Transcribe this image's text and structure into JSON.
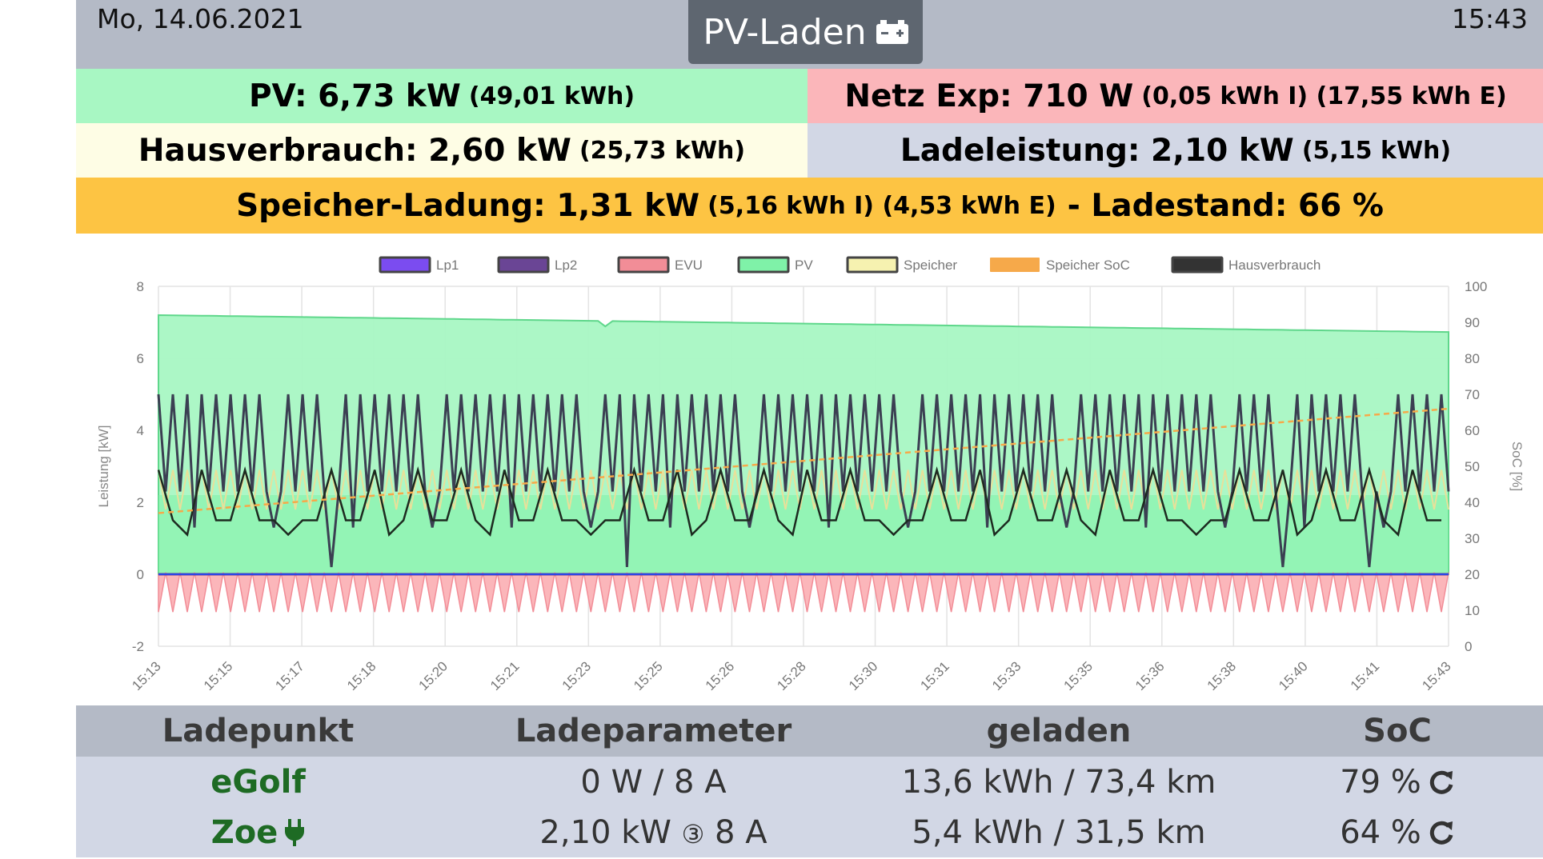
{
  "header": {
    "date": "Mo, 14.06.2021",
    "time": "15:43",
    "title": "PV-Laden",
    "title_icon": "car-battery-icon"
  },
  "status": {
    "pv": {
      "label": "PV: 6,73 kW",
      "detail": "(49,01 kWh)",
      "bg": "#a8f7c3"
    },
    "grid": {
      "label": "Netz Exp: 710 W",
      "detail": "(0,05 kWh I) (17,55 kWh E)",
      "bg": "#fbb6ba"
    },
    "house": {
      "label": "Hausverbrauch: 2,60 kW",
      "detail": "(25,73 kWh)",
      "bg": "#fefde5"
    },
    "charge": {
      "label": "Ladeleistung: 2,10 kW",
      "detail": "(5,15 kWh)",
      "bg": "#d2d7e5"
    },
    "storage": {
      "label": "Speicher-Ladung: 1,31 kW",
      "detail": "(5,16 kWh I) (4,53 kWh E)",
      "soc": "- Ladestand: 66 %",
      "bg": "#fdc443"
    }
  },
  "chart_data": {
    "type": "line",
    "legend": [
      {
        "name": "Lp1",
        "color": "#7b4cf0"
      },
      {
        "name": "Lp2",
        "color": "#6a4595"
      },
      {
        "name": "EVU",
        "color": "#f28d97"
      },
      {
        "name": "PV",
        "color": "#7ff2a8"
      },
      {
        "name": "Speicher",
        "color": "#f6f2b0"
      },
      {
        "name": "Speicher SoC",
        "color": "#f6a94a"
      },
      {
        "name": "Hausverbrauch",
        "color": "#333333"
      }
    ],
    "legend_position": "top",
    "ylabel": "Leistung [kW]",
    "ylabel_right": "SoC [%]",
    "ylim": [
      -2,
      8
    ],
    "yticks": [
      "8",
      "6",
      "4",
      "2",
      "0",
      "-2"
    ],
    "ylim_right": [
      0,
      100
    ],
    "yticks_right": [
      "100",
      "90",
      "80",
      "70",
      "60",
      "50",
      "40",
      "30",
      "20",
      "10",
      "0"
    ],
    "xticks": [
      "15:13",
      "15:15",
      "15:17",
      "15:18",
      "15:20",
      "15:21",
      "15:23",
      "15:25",
      "15:26",
      "15:28",
      "15:30",
      "15:31",
      "15:33",
      "15:35",
      "15:36",
      "15:38",
      "15:40",
      "15:41",
      "15:43"
    ],
    "grid": true,
    "series_summary": {
      "PV": {
        "start": 7.2,
        "end": 6.73
      },
      "Hausverbrauch": {
        "min": 0.0,
        "max": 5.0
      },
      "EVU": {
        "min": -1.1,
        "max": 0.2
      },
      "Speicher_SoC": {
        "start": 37,
        "end": 66
      },
      "Lp1": 0,
      "Lp2": 0
    }
  },
  "table": {
    "headers": [
      "Ladepunkt",
      "Ladeparameter",
      "geladen",
      "SoC"
    ],
    "rows": [
      {
        "name": "eGolf",
        "plug": false,
        "params": "0 W / 8 A",
        "charged": "13,6 kWh / 73,4 km",
        "soc": "79 %"
      },
      {
        "name": "Zoe",
        "plug": true,
        "params_power": "2,10 kW",
        "params_phase": "③",
        "params_amp": "8 A",
        "charged": "5,4 kWh / 31,5 km",
        "soc": "64 %"
      }
    ]
  }
}
